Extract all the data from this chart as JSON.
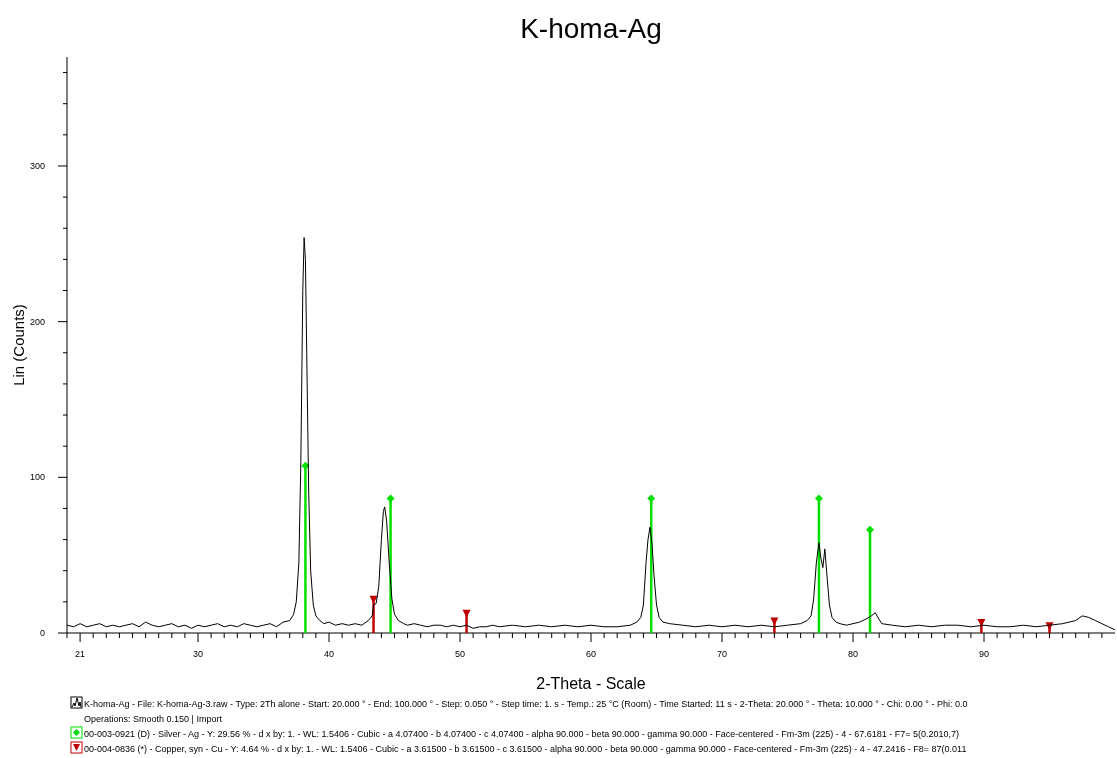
{
  "chart_data": {
    "type": "line",
    "title": "K-homa-Ag",
    "xlabel": "2-Theta - Scale",
    "ylabel": "Lin (Counts)",
    "xlim": [
      20,
      100
    ],
    "ylim": [
      0,
      370
    ],
    "xticks": [
      {
        "value": 20,
        "label": null
      },
      {
        "value": 21,
        "label": "21"
      },
      {
        "value": 22,
        "label": null
      },
      {
        "value": 23,
        "label": null
      },
      {
        "value": 24,
        "label": null
      },
      {
        "value": 25,
        "label": null
      },
      {
        "value": 26,
        "label": null
      },
      {
        "value": 27,
        "label": null
      },
      {
        "value": 28,
        "label": null
      },
      {
        "value": 29,
        "label": null
      },
      30,
      {
        "value": 31,
        "label": null
      },
      {
        "value": 32,
        "label": null
      },
      {
        "value": 33,
        "label": null
      },
      {
        "value": 34,
        "label": null
      },
      {
        "value": 35,
        "label": null
      },
      {
        "value": 36,
        "label": null
      },
      {
        "value": 37,
        "label": null
      },
      {
        "value": 38,
        "label": null
      },
      {
        "value": 39,
        "label": null
      },
      40,
      {
        "value": 41,
        "label": null
      },
      {
        "value": 42,
        "label": null
      },
      {
        "value": 43,
        "label": null
      },
      {
        "value": 44,
        "label": null
      },
      {
        "value": 45,
        "label": null
      },
      {
        "value": 46,
        "label": null
      },
      {
        "value": 47,
        "label": null
      },
      {
        "value": 48,
        "label": null
      },
      {
        "value": 49,
        "label": null
      },
      50,
      {
        "value": 51,
        "label": null
      },
      {
        "value": 52,
        "label": null
      },
      {
        "value": 53,
        "label": null
      },
      {
        "value": 54,
        "label": null
      },
      {
        "value": 55,
        "label": null
      },
      {
        "value": 56,
        "label": null
      },
      {
        "value": 57,
        "label": null
      },
      {
        "value": 58,
        "label": null
      },
      {
        "value": 59,
        "label": null
      },
      60,
      {
        "value": 61,
        "label": null
      },
      {
        "value": 62,
        "label": null
      },
      {
        "value": 63,
        "label": null
      },
      {
        "value": 64,
        "label": null
      },
      {
        "value": 65,
        "label": null
      },
      {
        "value": 66,
        "label": null
      },
      {
        "value": 67,
        "label": null
      },
      {
        "value": 68,
        "label": null
      },
      {
        "value": 69,
        "label": null
      },
      70,
      {
        "value": 71,
        "label": null
      },
      {
        "value": 72,
        "label": null
      },
      {
        "value": 73,
        "label": null
      },
      {
        "value": 74,
        "label": null
      },
      {
        "value": 75,
        "label": null
      },
      {
        "value": 76,
        "label": null
      },
      {
        "value": 77,
        "label": null
      },
      {
        "value": 78,
        "label": null
      },
      {
        "value": 79,
        "label": null
      },
      80,
      {
        "value": 81,
        "label": null
      },
      {
        "value": 82,
        "label": null
      },
      {
        "value": 83,
        "label": null
      },
      {
        "value": 84,
        "label": null
      },
      {
        "value": 85,
        "label": null
      },
      {
        "value": 86,
        "label": null
      },
      {
        "value": 87,
        "label": null
      },
      {
        "value": 88,
        "label": null
      },
      {
        "value": 89,
        "label": null
      },
      90,
      {
        "value": 91,
        "label": null
      },
      {
        "value": 92,
        "label": null
      },
      {
        "value": 93,
        "label": null
      },
      {
        "value": 94,
        "label": null
      },
      {
        "value": 95,
        "label": null
      },
      {
        "value": 96,
        "label": null
      },
      {
        "value": 97,
        "label": null
      },
      {
        "value": 98,
        "label": null
      },
      {
        "value": 99,
        "label": null
      }
    ],
    "yticks": [
      0,
      {
        "value": 20,
        "label": null
      },
      {
        "value": 40,
        "label": null
      },
      {
        "value": 60,
        "label": null
      },
      {
        "value": 80,
        "label": null
      },
      100,
      {
        "value": 120,
        "label": null
      },
      {
        "value": 140,
        "label": null
      },
      {
        "value": 160,
        "label": null
      },
      {
        "value": 180,
        "label": null
      },
      200,
      {
        "value": 220,
        "label": null
      },
      {
        "value": 240,
        "label": null
      },
      {
        "value": 260,
        "label": null
      },
      {
        "value": 280,
        "label": null
      },
      300,
      {
        "value": 320,
        "label": null
      },
      {
        "value": 340,
        "label": null
      },
      {
        "value": 360,
        "label": null
      }
    ],
    "legend": "bottom",
    "annotations": [
      "Operations: Smooth 0.150 | Import"
    ],
    "series": [
      {
        "name": "K-homa-Ag - File: K-homa-Ag-3.raw - Type: 2Th alone - Start: 20.000 ° - End: 100.000 ° - Step: 0.050 ° - Step time: 1. s - Temp.: 25 °C (Room) - Time Started: 11 s - 2-Theta: 20.000 ° - Theta: 10.000 ° - Chi: 0.00 ° - Phi: 0.0",
        "color": "#000000",
        "x": [
          20,
          20.5,
          21,
          21.5,
          22,
          22.5,
          23,
          23.5,
          24,
          24.5,
          25,
          25.5,
          26,
          26.5,
          27,
          27.5,
          28,
          28.5,
          29,
          29.5,
          30,
          30.5,
          31,
          31.5,
          32,
          32.5,
          33,
          33.5,
          34,
          34.5,
          35,
          35.5,
          36,
          36.5,
          37,
          37.3,
          37.5,
          37.7,
          37.85,
          38,
          38.1,
          38.2,
          38.3,
          38.45,
          38.6,
          38.8,
          39,
          39.3,
          39.6,
          40,
          40.5,
          41,
          41.5,
          42,
          42.5,
          43,
          43.3,
          43.4,
          43.6,
          43.8,
          44,
          44.15,
          44.25,
          44.4,
          44.6,
          44.8,
          45,
          45.3,
          45.7,
          46,
          46.5,
          47,
          47.5,
          48,
          48.5,
          49,
          49.5,
          50,
          50.5,
          51,
          51.5,
          52,
          52.5,
          53,
          54,
          55,
          56,
          57,
          58,
          59,
          60,
          61,
          62,
          63,
          63.5,
          63.8,
          64,
          64.2,
          64.35,
          64.5,
          64.65,
          64.8,
          65,
          65.2,
          65.5,
          66,
          67,
          68,
          69,
          70,
          71,
          72,
          73,
          74,
          75,
          76,
          76.5,
          76.8,
          77,
          77.2,
          77.4,
          77.55,
          77.7,
          77.85,
          78,
          78.2,
          78.4,
          78.7,
          79,
          79.5,
          80,
          80.5,
          81,
          81.4,
          81.7,
          81.9,
          82.2,
          83,
          84,
          85,
          86,
          87,
          88,
          89,
          90,
          91,
          92,
          93,
          94,
          95,
          96,
          97,
          97.5,
          98,
          98.5,
          99,
          99.5,
          100
        ],
        "values": [
          5,
          4,
          6,
          4,
          5,
          6,
          4,
          5,
          4,
          5,
          6,
          4,
          7,
          5,
          4,
          5,
          6,
          4,
          5,
          3,
          5,
          4,
          5,
          6,
          4,
          5,
          4,
          6,
          5,
          4,
          5,
          6,
          4,
          7,
          8,
          12,
          20,
          45,
          110,
          220,
          254,
          240,
          180,
          90,
          40,
          18,
          11,
          8,
          6,
          7,
          5,
          6,
          5,
          6,
          5,
          8,
          11,
          18,
          19,
          30,
          60,
          78,
          81,
          72,
          45,
          22,
          12,
          8,
          6,
          5,
          6,
          5,
          4,
          5,
          5,
          4,
          5,
          4,
          5,
          3,
          4,
          4,
          5,
          4,
          5,
          4,
          5,
          4,
          5,
          4,
          5,
          4,
          4,
          5,
          7,
          10,
          18,
          45,
          60,
          68,
          58,
          38,
          18,
          10,
          7,
          6,
          5,
          4,
          5,
          4,
          5,
          4,
          5,
          4,
          5,
          6,
          8,
          11,
          22,
          45,
          58,
          48,
          42,
          54,
          38,
          18,
          10,
          7,
          6,
          5,
          6,
          7,
          9,
          11,
          13,
          10,
          6,
          5,
          4,
          5,
          4,
          5,
          5,
          4,
          5,
          4,
          4,
          5,
          4,
          5,
          6,
          8,
          11,
          10,
          8,
          6,
          4,
          2
        ]
      },
      {
        "name": "00-003-0921 (D) - Silver - Ag - Y: 29.56 % - d x by: 1. - WL: 1.5406 - Cubic - a 4.07400 - b 4.07400 - c 4.07400 - alpha 90.000 - beta 90.000 - gamma 90.000 - Face-centered - Fm-3m (225) - 4 - 67.6181 - F7=  5(0.2010,7)",
        "type": "lollipop",
        "color": "#00e000",
        "marker": "diamond",
        "x": [
          38.2,
          44.7,
          64.6,
          77.4,
          81.3
        ],
        "values": [
          108,
          87,
          87,
          87,
          67
        ]
      },
      {
        "name": "00-004-0836 (*) - Copper, syn - Cu - Y: 4.64 % - d x by: 1. - WL: 1.5406 - Cubic - a 3.61500 - b 3.61500 - c 3.61500 - alpha 90.000 - beta 90.000 - gamma 90.000 - Face-centered - Fm-3m (225) - 4 - 47.2416 - F8= 87(0.011",
        "type": "lollipop",
        "color": "#c00000",
        "marker": "triangle",
        "x": [
          43.4,
          50.5,
          74.0,
          89.8,
          95.0
        ],
        "values": [
          22,
          13,
          8,
          7,
          5
        ]
      }
    ]
  }
}
